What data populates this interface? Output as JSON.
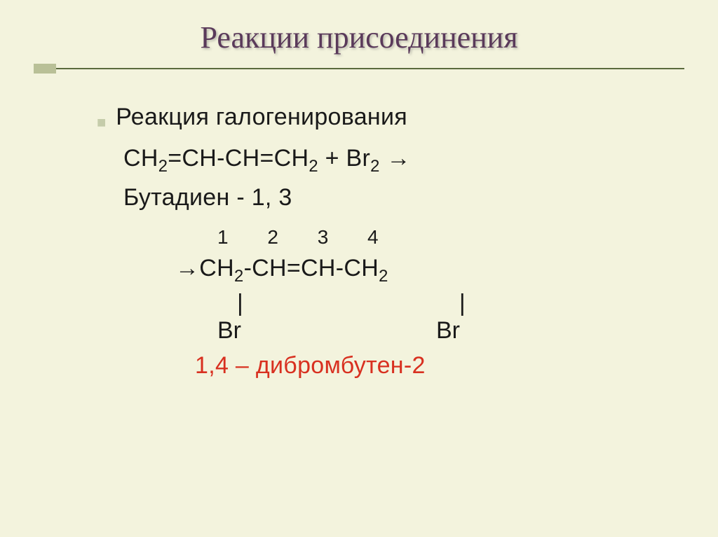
{
  "slide": {
    "background_color": "#f3f3dd",
    "title": "Реакции присоединения",
    "title_color": "#5a3a5a",
    "rule_color": "#5a6b3e",
    "box_color": "#b9c097",
    "bullet_color": "#c5ccaa",
    "text_color": "#1a1a1a",
    "product_color": "#d83020",
    "subtitle": "Реакция галогенирования",
    "reactant_formula_html": "CH<sub>2</sub>=CH-CH=CH<sub>2</sub> + Br<sub>2</sub> →",
    "reactant_name": "Бутадиен - 1, 3",
    "carbon_numbers": "1 2 3 4",
    "product_formula_html": "→CH<sub>2</sub>-CH=CH-CH<sub>2</sub>",
    "bond_symbol": "|",
    "substituent": "Br",
    "product_name": "1,4 – дибромбутен-2"
  }
}
